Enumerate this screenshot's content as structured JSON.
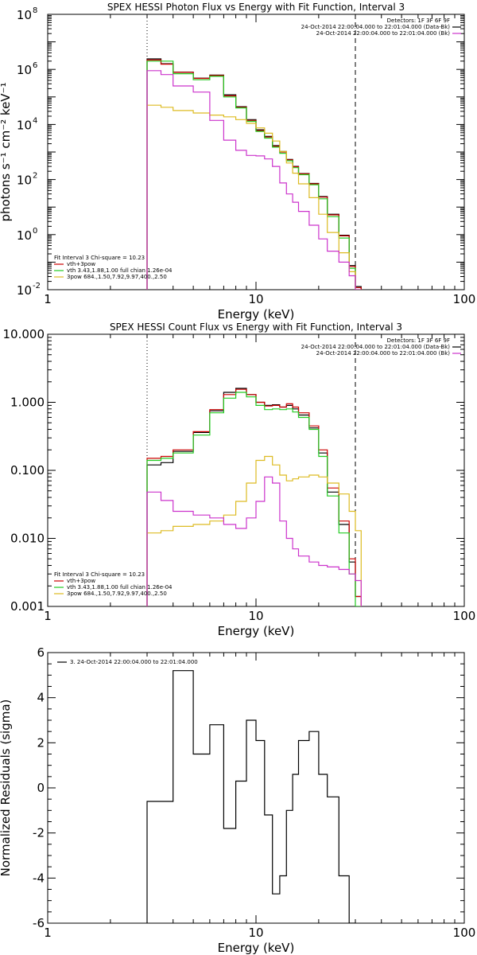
{
  "chart_data": [
    {
      "type": "line",
      "title": "SPEX HESSI Photon Flux vs Energy with Fit Function, Interval 3",
      "xlabel": "Energy (keV)",
      "ylabel": "photons s⁻¹ cm⁻² keV⁻¹",
      "xscale": "log",
      "yscale": "log",
      "xlim": [
        1,
        100
      ],
      "ylim": [
        0.01,
        100000000
      ],
      "x_ticks": [
        {
          "v": 1,
          "label": "1"
        },
        {
          "v": 10,
          "label": "10"
        },
        {
          "v": 100,
          "label": "100"
        }
      ],
      "y_ticks": [
        {
          "v": 0.01,
          "base": "10",
          "exp": "-2"
        },
        {
          "v": 1,
          "base": "10",
          "exp": "0"
        },
        {
          "v": 100,
          "base": "10",
          "exp": "2"
        },
        {
          "v": 10000,
          "base": "10",
          "exp": "4"
        },
        {
          "v": 1000000,
          "base": "10",
          "exp": "6"
        },
        {
          "v": 100000000,
          "base": "10",
          "exp": "8"
        }
      ],
      "vlines": [
        {
          "x": 3,
          "style": "dotted"
        },
        {
          "x": 30,
          "style": "dashed"
        }
      ],
      "legend_top": [
        "Detectors: 1F 3F 6F 9F",
        "24-Oct-2014 22:00:04.000 to 22:01:04.000 (Data-Bk)",
        "24-Oct-2014 22:00:04.000 to 22:01:04.000 (Bk)"
      ],
      "legend_top_colors": [
        "",
        "#000000",
        "#cc33cc"
      ],
      "legend_bottom": [
        "Fit Interval 3   Chi-square = 10.23",
        "vth+3pow",
        "vth 3.43,1.88,1.00  full chian 1.26e-04",
        "3pow 684.,1.50,7.92,9.97,400.,2.50"
      ],
      "legend_bottom_colors": [
        "",
        "#cc0000",
        "#22cc22",
        "#ddbb22"
      ],
      "edges": [
        3,
        3.5,
        4,
        5,
        6,
        7,
        8,
        9,
        10,
        11,
        12,
        13,
        14,
        15,
        16,
        18,
        20,
        22,
        25,
        28,
        30,
        32
      ],
      "series": [
        {
          "color": "#000000",
          "values": [
            2400000,
            1600000,
            800000,
            480000,
            620000,
            120000,
            44000,
            15000,
            6400,
            3700,
            1700,
            1050,
            540,
            300,
            165,
            72,
            24,
            5.5,
            0.95,
            0.075,
            0.013
          ]
        },
        {
          "color": "#cc0000",
          "values": [
            2200000,
            1550000,
            780000,
            470000,
            600000,
            110000,
            42000,
            14000,
            6000,
            3500,
            1600,
            1000,
            520,
            290,
            160,
            70,
            23,
            5.2,
            0.9,
            0.07,
            0.012
          ]
        },
        {
          "color": "#22cc22",
          "values": [
            2000000,
            2000000,
            700000,
            420000,
            560000,
            100000,
            40000,
            13000,
            5600,
            3200,
            1500,
            900,
            480,
            270,
            150,
            65,
            20,
            4.5,
            0.75,
            0.06,
            0.01
          ]
        },
        {
          "color": "#ddbb22",
          "values": [
            50000,
            42000,
            32000,
            26000,
            22000,
            19000,
            15000,
            11000,
            7500,
            4800,
            2500,
            1050,
            400,
            170,
            70,
            22,
            5.5,
            1.2,
            0.22,
            0.045,
            0.01
          ]
        },
        {
          "color": "#cc33cc",
          "values": [
            900000,
            650000,
            250000,
            150000,
            14000,
            2700,
            1150,
            750,
            720,
            560,
            300,
            75,
            30,
            15,
            7,
            2.2,
            0.7,
            0.25,
            0.1,
            0.032,
            0.01
          ]
        }
      ]
    },
    {
      "type": "line",
      "title": "SPEX HESSI Count Flux vs Energy with Fit Function, Interval 3",
      "xlabel": "Energy (keV)",
      "ylabel": "",
      "xscale": "log",
      "yscale": "log",
      "xlim": [
        1,
        100
      ],
      "ylim": [
        0.001,
        10
      ],
      "x_ticks": [
        {
          "v": 1,
          "label": "1"
        },
        {
          "v": 10,
          "label": "10"
        },
        {
          "v": 100,
          "label": "100"
        }
      ],
      "y_ticks": [
        {
          "v": 0.001,
          "label": "0.001"
        },
        {
          "v": 0.01,
          "label": "0.010"
        },
        {
          "v": 0.1,
          "label": "0.100"
        },
        {
          "v": 1,
          "label": "1.000"
        },
        {
          "v": 10,
          "label": "10.000"
        }
      ],
      "vlines": [
        {
          "x": 3,
          "style": "dotted"
        },
        {
          "x": 30,
          "style": "dashed"
        }
      ],
      "legend_top": [
        "Detectors: 1F 3F 6F 9F",
        "24-Oct-2014 22:00:04.000 to 22:01:04.000 (Data-Bk)",
        "24-Oct-2014 22:00:04.000 to 22:01:04.000 (Bk)"
      ],
      "legend_top_colors": [
        "",
        "#000000",
        "#cc33cc"
      ],
      "legend_bottom": [
        "Fit Interval 3   Chi-square = 10.23",
        "vth+3pow",
        "vth 3.43,1.88,1.00  full chian 1.26e-04",
        "3pow 684.,1.50,7.92,9.97,400.,2.50"
      ],
      "legend_bottom_colors": [
        "",
        "#cc0000",
        "#22cc22",
        "#ddbb22"
      ],
      "edges": [
        3,
        3.5,
        4,
        5,
        6,
        7,
        8,
        9,
        10,
        11,
        12,
        13,
        14,
        15,
        16,
        18,
        20,
        22,
        25,
        28,
        30,
        32
      ],
      "series": [
        {
          "color": "#000000",
          "values": [
            0.12,
            0.13,
            0.19,
            0.36,
            0.75,
            1.4,
            1.6,
            1.3,
            1.0,
            0.9,
            0.92,
            0.85,
            0.9,
            0.8,
            0.65,
            0.42,
            0.18,
            0.048,
            0.016,
            0.0045,
            0.0014
          ]
        },
        {
          "color": "#cc0000",
          "values": [
            0.15,
            0.16,
            0.2,
            0.37,
            0.78,
            1.3,
            1.55,
            1.3,
            1.0,
            0.88,
            0.9,
            0.85,
            0.95,
            0.85,
            0.7,
            0.45,
            0.2,
            0.055,
            0.018,
            0.005,
            0.0014
          ]
        },
        {
          "color": "#22cc22",
          "values": [
            0.14,
            0.15,
            0.18,
            0.33,
            0.7,
            1.15,
            1.4,
            1.2,
            0.9,
            0.78,
            0.8,
            0.78,
            0.8,
            0.72,
            0.6,
            0.4,
            0.16,
            0.042,
            0.012,
            0.003,
            0.001
          ]
        },
        {
          "color": "#ddbb22",
          "values": [
            0.012,
            0.013,
            0.015,
            0.016,
            0.018,
            0.022,
            0.035,
            0.065,
            0.14,
            0.16,
            0.12,
            0.085,
            0.07,
            0.075,
            0.08,
            0.085,
            0.08,
            0.065,
            0.045,
            0.025,
            0.013
          ]
        },
        {
          "color": "#cc33cc",
          "values": [
            0.048,
            0.036,
            0.025,
            0.022,
            0.02,
            0.016,
            0.014,
            0.02,
            0.035,
            0.08,
            0.065,
            0.018,
            0.01,
            0.007,
            0.0055,
            0.0045,
            0.004,
            0.0038,
            0.0035,
            0.003,
            0.0024
          ]
        }
      ]
    },
    {
      "type": "line",
      "title": "",
      "xlabel": "Energy (keV)",
      "ylabel": "Normalized Residuals (sigma)",
      "xscale": "log",
      "yscale": "linear",
      "xlim": [
        1,
        100
      ],
      "ylim": [
        -6,
        6
      ],
      "x_ticks": [
        {
          "v": 1,
          "label": "1"
        },
        {
          "v": 10,
          "label": "10"
        },
        {
          "v": 100,
          "label": "100"
        }
      ],
      "y_ticks": [
        {
          "v": -6,
          "label": "-6"
        },
        {
          "v": -4,
          "label": "-4"
        },
        {
          "v": -2,
          "label": "-2"
        },
        {
          "v": 0,
          "label": "0"
        },
        {
          "v": 2,
          "label": "2"
        },
        {
          "v": 4,
          "label": "4"
        },
        {
          "v": 6,
          "label": "6"
        }
      ],
      "legend_top": [
        "3. 24-Oct-2014 22:00:04.000 to 22:01:04.000"
      ],
      "edges": [
        3,
        3.5,
        4,
        5,
        6,
        7,
        8,
        9,
        10,
        11,
        12,
        13,
        14,
        15,
        16,
        18,
        20,
        22,
        25,
        28,
        30
      ],
      "series": [
        {
          "color": "#000000",
          "values": [
            -0.6,
            -0.6,
            5.2,
            1.5,
            2.8,
            -1.8,
            0.3,
            3.0,
            2.1,
            -1.2,
            -4.7,
            -3.9,
            -1.0,
            0.6,
            2.1,
            2.5,
            0.6,
            -0.4,
            -3.9,
            -6.0
          ]
        }
      ]
    }
  ]
}
